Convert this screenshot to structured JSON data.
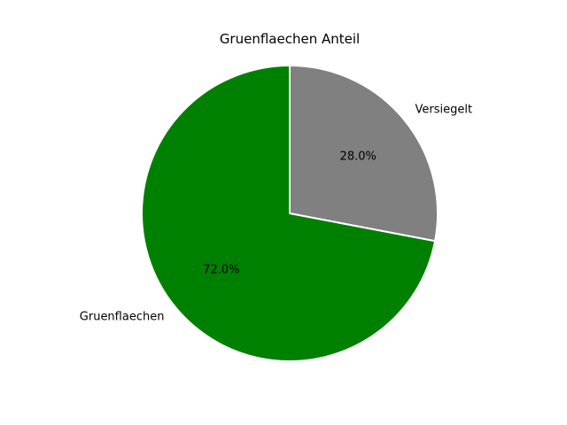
{
  "chart_data": {
    "type": "pie",
    "title": "Gruenflaechen Anteil",
    "categories": [
      "Versiegelt",
      "Gruenflaechen"
    ],
    "values": [
      28.0,
      72.0
    ],
    "percent_labels": [
      "28.0%",
      "72.0%"
    ],
    "colors": [
      "#808080",
      "#008000"
    ],
    "edge_color": "#ffffff",
    "start_angle_deg": 90,
    "direction": "clockwise",
    "legend": "none"
  }
}
